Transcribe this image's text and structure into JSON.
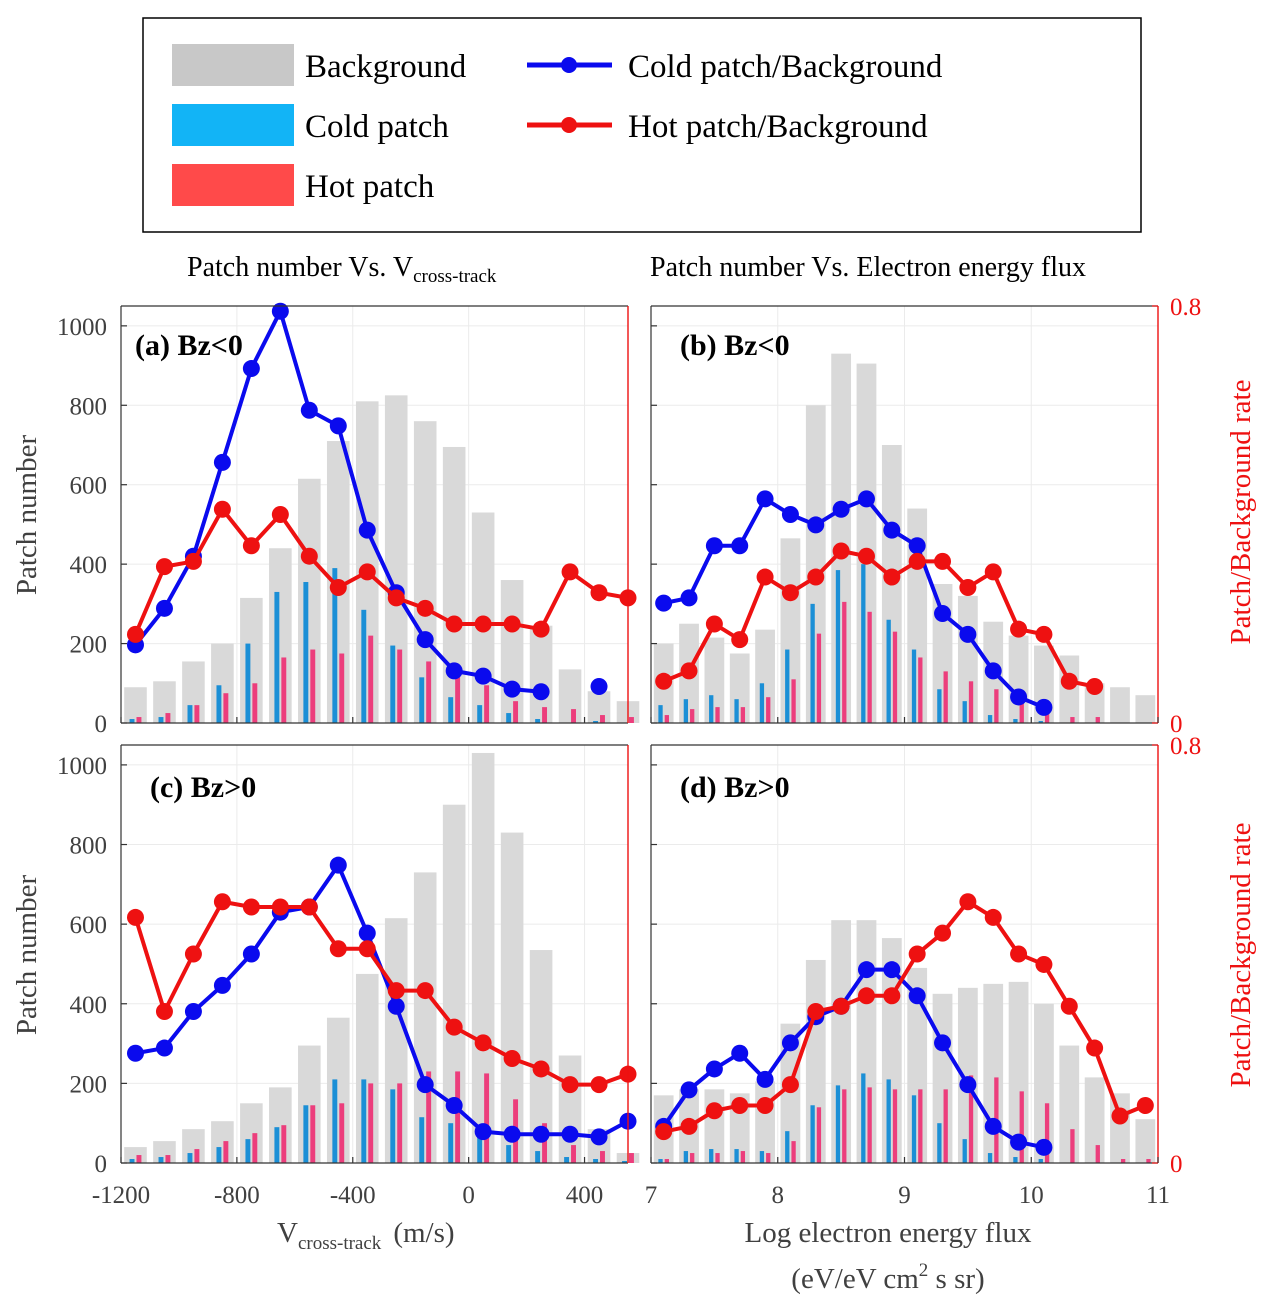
{
  "legend": {
    "items": [
      {
        "label": "Background",
        "kind": "bar",
        "color": "#c8c8c8"
      },
      {
        "label": "Cold patch",
        "kind": "bar",
        "color": "#12b4f6"
      },
      {
        "label": "Hot patch",
        "kind": "bar",
        "color": "#ff4a4a"
      },
      {
        "label": "Cold patch/Background",
        "kind": "line",
        "color": "#0000ee"
      },
      {
        "label": "Hot patch/Background",
        "kind": "line",
        "color": "#ee0000"
      }
    ]
  },
  "column_titles": {
    "left_main": "Patch number Vs. V",
    "left_sub": "cross-track",
    "right": "Patch number Vs. Electron energy flux"
  },
  "axis_labels": {
    "y_left": "Patch number",
    "y_right": "Patch/Background rate",
    "x_left_main": "V",
    "x_left_sub": "cross-track",
    "x_left_unit": "(m/s)",
    "x_right_line1": "Log electron energy flux",
    "x_right_line2_pre": "(eV/eV cm",
    "x_right_line2_sup": "2",
    "x_right_line2_post": " s sr)"
  },
  "colors": {
    "background_bar": "#d9d9d9",
    "cold_bar": "#1b8fd6",
    "hot_bar": "#ec3e7c",
    "cold_line": "#0a0aee",
    "hot_line": "#ee1111",
    "right_axis": "#ee1111",
    "grid": "#ebebeb"
  },
  "chart_data": [
    {
      "type": "bar",
      "panel_label": "(a) Bz<0",
      "x": [
        -1150,
        -1050,
        -950,
        -850,
        -750,
        -650,
        -550,
        -450,
        -350,
        -250,
        -150,
        -50,
        50,
        150,
        250,
        350,
        450,
        550
      ],
      "xlim": [
        -1200,
        550
      ],
      "xticks": [
        "-1200",
        "-800",
        "-400",
        "0",
        "400"
      ],
      "xtick_values": [
        -1200,
        -800,
        -400,
        0,
        400
      ],
      "ylim": [
        0,
        1050
      ],
      "yticks": [
        "0",
        "200",
        "400",
        "600",
        "800",
        "1000"
      ],
      "ytick_values": [
        0,
        200,
        400,
        600,
        800,
        1000
      ],
      "y2lim": [
        0,
        0.8
      ],
      "y2ticks": [],
      "y2tick_values": [],
      "series": [
        {
          "name": "Background",
          "kind": "bar",
          "values": [
            90,
            105,
            155,
            200,
            315,
            440,
            615,
            710,
            810,
            825,
            760,
            695,
            530,
            360,
            245,
            135,
            80,
            55
          ]
        },
        {
          "name": "Cold patch",
          "kind": "bar",
          "values": [
            10,
            15,
            45,
            95,
            200,
            330,
            355,
            390,
            285,
            195,
            115,
            65,
            45,
            25,
            10,
            0,
            5,
            0
          ]
        },
        {
          "name": "Hot patch",
          "kind": "bar",
          "values": [
            15,
            25,
            45,
            75,
            100,
            165,
            185,
            175,
            220,
            185,
            155,
            125,
            95,
            55,
            40,
            35,
            20,
            15
          ]
        },
        {
          "name": "Cold patch/Background",
          "kind": "line",
          "values": [
            0.15,
            0.22,
            0.32,
            0.5,
            0.68,
            0.79,
            0.6,
            0.57,
            0.37,
            0.25,
            0.16,
            0.1,
            0.09,
            0.065,
            0.06,
            null,
            0.07,
            null
          ]
        },
        {
          "name": "Hot patch/Background",
          "kind": "line",
          "values": [
            0.17,
            0.3,
            0.31,
            0.41,
            0.34,
            0.4,
            0.32,
            0.26,
            0.29,
            0.24,
            0.22,
            0.19,
            0.19,
            0.19,
            0.18,
            0.29,
            0.25,
            0.24
          ]
        }
      ]
    },
    {
      "type": "bar",
      "panel_label": "(b) Bz<0",
      "x": [
        7.1,
        7.3,
        7.5,
        7.7,
        7.9,
        8.1,
        8.3,
        8.5,
        8.7,
        8.9,
        9.1,
        9.3,
        9.5,
        9.7,
        9.9,
        10.1,
        10.3,
        10.5,
        10.7,
        10.9
      ],
      "xlim": [
        7,
        11
      ],
      "xticks": [
        "7",
        "8",
        "9",
        "10",
        "11"
      ],
      "xtick_values": [
        7,
        8,
        9,
        10,
        11
      ],
      "ylim": [
        0,
        1050
      ],
      "yticks": [],
      "ytick_values": [],
      "y2lim": [
        0,
        0.8
      ],
      "y2ticks": [
        "0",
        "0.8"
      ],
      "y2tick_values": [
        0,
        0.8
      ],
      "series": [
        {
          "name": "Background",
          "kind": "bar",
          "values": [
            200,
            250,
            215,
            175,
            235,
            465,
            800,
            930,
            905,
            700,
            540,
            350,
            320,
            255,
            220,
            195,
            170,
            100,
            90,
            70
          ]
        },
        {
          "name": "Cold patch",
          "kind": "bar",
          "values": [
            45,
            60,
            70,
            60,
            100,
            185,
            300,
            385,
            400,
            260,
            185,
            85,
            55,
            20,
            10,
            5,
            0,
            0,
            0,
            0
          ]
        },
        {
          "name": "Hot patch",
          "kind": "bar",
          "values": [
            20,
            35,
            40,
            40,
            65,
            110,
            225,
            305,
            280,
            230,
            165,
            130,
            105,
            85,
            65,
            45,
            15,
            15,
            0,
            0
          ]
        },
        {
          "name": "Cold patch/Background",
          "kind": "line",
          "values": [
            0.23,
            0.24,
            0.34,
            0.34,
            0.43,
            0.4,
            0.38,
            0.41,
            0.43,
            0.37,
            0.34,
            0.21,
            0.17,
            0.1,
            0.05,
            0.03,
            null,
            null,
            null,
            null
          ]
        },
        {
          "name": "Hot patch/Background",
          "kind": "line",
          "values": [
            0.08,
            0.1,
            0.19,
            0.16,
            0.28,
            0.25,
            0.28,
            0.33,
            0.32,
            0.28,
            0.31,
            0.31,
            0.26,
            0.29,
            0.18,
            0.17,
            0.08,
            0.07,
            null,
            null
          ]
        }
      ]
    },
    {
      "type": "bar",
      "panel_label": "(c) Bz>0",
      "x": [
        -1150,
        -1050,
        -950,
        -850,
        -750,
        -650,
        -550,
        -450,
        -350,
        -250,
        -150,
        -50,
        50,
        150,
        250,
        350,
        450,
        550
      ],
      "xlim": [
        -1200,
        550
      ],
      "xticks": [
        "-1200",
        "-800",
        "-400",
        "0",
        "400"
      ],
      "xtick_values": [
        -1200,
        -800,
        -400,
        0,
        400
      ],
      "ylim": [
        0,
        1050
      ],
      "yticks": [
        "0",
        "200",
        "400",
        "600",
        "800",
        "1000"
      ],
      "ytick_values": [
        0,
        200,
        400,
        600,
        800,
        1000
      ],
      "y2lim": [
        0,
        0.8
      ],
      "y2ticks": [],
      "y2tick_values": [],
      "series": [
        {
          "name": "Background",
          "kind": "bar",
          "values": [
            40,
            55,
            85,
            105,
            150,
            190,
            295,
            365,
            475,
            615,
            730,
            900,
            1030,
            830,
            535,
            270,
            85,
            25
          ]
        },
        {
          "name": "Cold patch",
          "kind": "bar",
          "values": [
            10,
            15,
            25,
            40,
            60,
            90,
            145,
            210,
            210,
            185,
            115,
            100,
            65,
            45,
            30,
            15,
            10,
            5
          ]
        },
        {
          "name": "Hot patch",
          "kind": "bar",
          "values": [
            20,
            20,
            35,
            55,
            75,
            95,
            145,
            150,
            200,
            200,
            230,
            230,
            225,
            160,
            100,
            45,
            30,
            25
          ]
        },
        {
          "name": "Cold patch/Background",
          "kind": "line",
          "values": [
            0.21,
            0.22,
            0.29,
            0.34,
            0.4,
            0.48,
            0.49,
            0.57,
            0.44,
            0.3,
            0.15,
            0.11,
            0.06,
            0.055,
            0.055,
            0.055,
            0.05,
            0.08
          ]
        },
        {
          "name": "Hot patch/Background",
          "kind": "line",
          "values": [
            0.47,
            0.29,
            0.4,
            0.5,
            0.49,
            0.49,
            0.49,
            0.41,
            0.41,
            0.33,
            0.33,
            0.26,
            0.23,
            0.2,
            0.18,
            0.15,
            0.15,
            0.17
          ]
        }
      ]
    },
    {
      "type": "bar",
      "panel_label": "(d) Bz>0",
      "x": [
        7.1,
        7.3,
        7.5,
        7.7,
        7.9,
        8.1,
        8.3,
        8.5,
        8.7,
        8.9,
        9.1,
        9.3,
        9.5,
        9.7,
        9.9,
        10.1,
        10.3,
        10.5,
        10.7,
        10.9
      ],
      "xlim": [
        7,
        11
      ],
      "xticks": [
        "7",
        "8",
        "9",
        "10",
        "11"
      ],
      "xtick_values": [
        7,
        8,
        9,
        10,
        11
      ],
      "ylim": [
        0,
        1050
      ],
      "yticks": [],
      "ytick_values": [],
      "y2lim": [
        0,
        0.8
      ],
      "y2ticks": [
        "0",
        "0.8"
      ],
      "y2tick_values": [
        0,
        0.8
      ],
      "series": [
        {
          "name": "Background",
          "kind": "bar",
          "values": [
            170,
            185,
            185,
            175,
            205,
            350,
            510,
            610,
            610,
            565,
            490,
            425,
            440,
            450,
            455,
            400,
            295,
            215,
            175,
            110
          ]
        },
        {
          "name": "Cold patch",
          "kind": "bar",
          "values": [
            10,
            30,
            35,
            35,
            30,
            80,
            145,
            195,
            225,
            210,
            170,
            100,
            60,
            25,
            15,
            10,
            0,
            0,
            0,
            0
          ]
        },
        {
          "name": "Hot patch",
          "kind": "bar",
          "values": [
            10,
            25,
            25,
            30,
            25,
            55,
            140,
            185,
            190,
            185,
            185,
            185,
            220,
            215,
            180,
            150,
            85,
            45,
            10,
            10
          ]
        },
        {
          "name": "Cold patch/Background",
          "kind": "line",
          "values": [
            0.07,
            0.14,
            0.18,
            0.21,
            0.16,
            0.23,
            0.28,
            0.3,
            0.37,
            0.37,
            0.32,
            0.23,
            0.15,
            0.07,
            0.04,
            0.03,
            null,
            null,
            null,
            null
          ]
        },
        {
          "name": "Hot patch/Background",
          "kind": "line",
          "values": [
            0.06,
            0.07,
            0.1,
            0.11,
            0.11,
            0.15,
            0.29,
            0.3,
            0.32,
            0.32,
            0.4,
            0.44,
            0.5,
            0.47,
            0.4,
            0.38,
            0.3,
            0.22,
            0.09,
            0.11
          ]
        }
      ]
    }
  ]
}
